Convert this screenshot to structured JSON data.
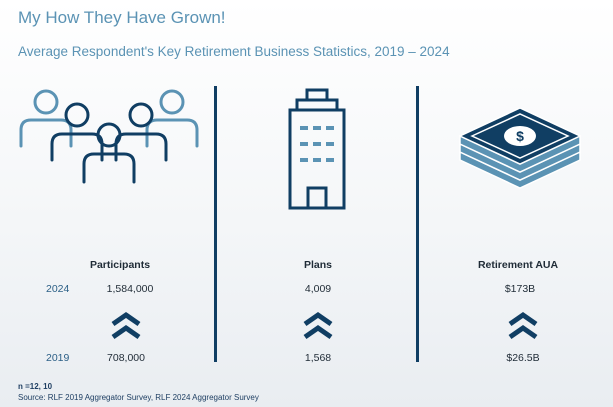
{
  "title": "My How They Have Grown!",
  "subtitle": "Average Respondent's Key Retirement Business Statistics, 2019 – 2024",
  "years": {
    "recent": "2024",
    "earlier": "2019"
  },
  "columns": [
    {
      "label": "Participants",
      "value_2024": "1,584,000",
      "value_2019": "708,000",
      "icon": "people-group-icon"
    },
    {
      "label": "Plans",
      "value_2024": "4,009",
      "value_2019": "1,568",
      "icon": "building-icon"
    },
    {
      "label": "Retirement AUA",
      "value_2024": "$173B",
      "value_2019": "$26.5B",
      "icon": "money-stack-icon"
    }
  ],
  "footnote": {
    "n": "n =12, 10",
    "source": "Source: RLF 2019 Aggregator Survey, RLF 2024 Aggregator Survey"
  },
  "colors": {
    "accent": "#5b93b4",
    "dark": "#103e63"
  }
}
